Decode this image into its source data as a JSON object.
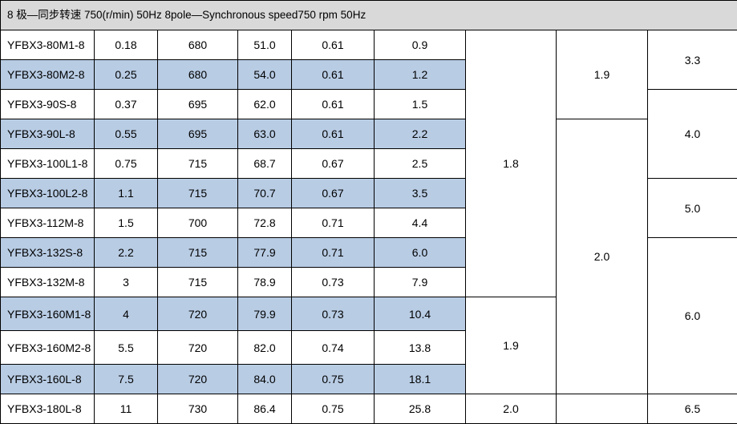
{
  "title": "8 极—同步转速 750(r/min) 50Hz 8pole—Synchronous  speed750  rpm     50Hz",
  "rows": [
    {
      "model": "YFBX3-80M1-8",
      "power": "0.18",
      "speed": "680",
      "efficiency": "51.0",
      "pf": "0.61",
      "current": "0.9"
    },
    {
      "model": "YFBX3-80M2-8",
      "power": "0.25",
      "speed": "680",
      "efficiency": "54.0",
      "pf": "0.61",
      "current": "1.2"
    },
    {
      "model": "YFBX3-90S-8",
      "power": "0.37",
      "speed": "695",
      "efficiency": "62.0",
      "pf": "0.61",
      "current": "1.5"
    },
    {
      "model": "YFBX3-90L-8",
      "power": "0.55",
      "speed": "695",
      "efficiency": "63.0",
      "pf": "0.61",
      "current": "2.2"
    },
    {
      "model": "YFBX3-100L1-8",
      "power": "0.75",
      "speed": "715",
      "efficiency": "68.7",
      "pf": "0.67",
      "current": "2.5"
    },
    {
      "model": "YFBX3-100L2-8",
      "power": "1.1",
      "speed": "715",
      "efficiency": "70.7",
      "pf": "0.67",
      "current": "3.5"
    },
    {
      "model": "YFBX3-112M-8",
      "power": "1.5",
      "speed": "700",
      "efficiency": "72.8",
      "pf": "0.71",
      "current": "4.4"
    },
    {
      "model": "YFBX3-132S-8",
      "power": "2.2",
      "speed": "715",
      "efficiency": "77.9",
      "pf": "0.71",
      "current": "6.0"
    },
    {
      "model": "YFBX3-132M-8",
      "power": "3",
      "speed": "715",
      "efficiency": "78.9",
      "pf": "0.73",
      "current": "7.9"
    },
    {
      "model": "YFBX3-160M1-8",
      "power": "4",
      "speed": "720",
      "efficiency": "79.9",
      "pf": "0.73",
      "current": "10.4"
    },
    {
      "model": "YFBX3-160M2-8",
      "power": "5.5",
      "speed": "720",
      "efficiency": "82.0",
      "pf": "0.74",
      "current": "13.8"
    },
    {
      "model": "YFBX3-160L-8",
      "power": "7.5",
      "speed": "720",
      "efficiency": "84.0",
      "pf": "0.75",
      "current": "18.1"
    },
    {
      "model": "YFBX3-180L-8",
      "power": "11",
      "speed": "730",
      "efficiency": "86.4",
      "pf": "0.75",
      "current": "25.8"
    }
  ],
  "merged": {
    "col7_a": "1.8",
    "col7_b": "1.9",
    "col7_c": "2.0",
    "col8_a": "1.9",
    "col8_b": "2.0",
    "col9_a": "3.3",
    "col9_b": "4.0",
    "col9_c": "5.0",
    "col9_d": "6.0",
    "col9_e": "6.5"
  },
  "colors": {
    "header_bg": "#d9d9d9",
    "row_shade": "#b8cce4",
    "grid": "#000000"
  }
}
